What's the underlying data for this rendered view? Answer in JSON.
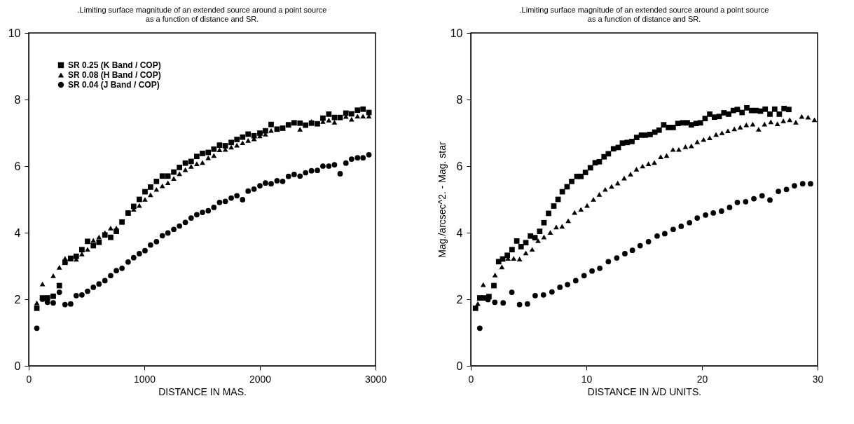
{
  "chart_data": [
    {
      "type": "scatter",
      "title": ".Limiting surface magnitude of an extended source around a point source\nas a function of distance and SR.",
      "xlabel": "DISTANCE IN MAS.",
      "xlim": [
        0,
        3000
      ],
      "xticks": [
        0,
        1000,
        2000,
        3000
      ],
      "ylim": [
        0,
        10
      ],
      "yticks": [
        0,
        2,
        4,
        6,
        8,
        10
      ],
      "grid": false,
      "legend": "top left",
      "series": [
        {
          "name": "SR 0.25 (K Band / COP)",
          "color": "#000000",
          "marker": "square",
          "x": [
            70,
            119,
            162,
            212,
            265,
            314,
            363,
            411,
            460,
            509,
            559,
            608,
            659,
            709,
            758,
            807,
            860,
            908,
            957,
            1006,
            1054,
            1105,
            1156,
            1204,
            1255,
            1304,
            1355,
            1405,
            1454,
            1503,
            1553,
            1602,
            1651,
            1701,
            1752,
            1801,
            1850,
            1898,
            1949,
            2000,
            2048,
            2097,
            2148,
            2197,
            2247,
            2296,
            2347,
            2395,
            2446,
            2497,
            2545,
            2596,
            2645,
            2694,
            2744,
            2793,
            2844,
            2892,
            2943
          ],
          "values": [
            1.73,
            2.04,
            2.04,
            2.09,
            2.41,
            3.11,
            3.23,
            3.29,
            3.49,
            3.74,
            3.61,
            3.71,
            3.93,
            3.86,
            4.04,
            4.32,
            4.59,
            4.79,
            5.0,
            5.23,
            5.37,
            5.54,
            5.7,
            5.7,
            5.82,
            5.96,
            6.09,
            6.14,
            6.29,
            6.38,
            6.41,
            6.51,
            6.63,
            6.61,
            6.71,
            6.8,
            6.87,
            6.96,
            6.91,
            6.99,
            7.06,
            7.25,
            7.11,
            7.14,
            7.24,
            7.3,
            7.29,
            7.23,
            7.29,
            7.27,
            7.44,
            7.56,
            7.46,
            7.46,
            7.59,
            7.57,
            7.68,
            7.71,
            7.61
          ]
        },
        {
          "name": "SR 0.08 (H Band / COP)",
          "color": "#000000",
          "marker": "triangle",
          "x": [
            70,
            119,
            212,
            265,
            314,
            363,
            411,
            460,
            509,
            559,
            608,
            659,
            709,
            758,
            807,
            860,
            908,
            957,
            1006,
            1054,
            1105,
            1156,
            1204,
            1255,
            1304,
            1355,
            1405,
            1454,
            1503,
            1553,
            1602,
            1651,
            1701,
            1752,
            1801,
            1850,
            1898,
            1949,
            2000,
            2048,
            2097,
            2197,
            2347,
            2446,
            2545,
            2596,
            2645,
            2744,
            2793,
            2844,
            2892,
            2943
          ],
          "values": [
            1.89,
            2.46,
            2.71,
            2.96,
            3.23,
            3.21,
            3.2,
            3.36,
            3.5,
            3.77,
            3.87,
            4.0,
            4.14,
            4.14,
            4.34,
            4.59,
            4.7,
            4.82,
            5.0,
            5.14,
            5.3,
            5.41,
            5.5,
            5.63,
            5.77,
            5.89,
            5.99,
            6.07,
            6.11,
            6.25,
            6.32,
            6.49,
            6.5,
            6.57,
            6.63,
            6.7,
            6.77,
            6.82,
            6.91,
            6.96,
            7.07,
            7.14,
            7.11,
            7.34,
            7.34,
            7.38,
            7.32,
            7.49,
            7.41,
            7.5,
            7.5,
            7.5
          ]
        },
        {
          "name": "SR 0.04 (J Band / COP)",
          "color": "#000000",
          "marker": "circle",
          "x": [
            70,
            119,
            162,
            212,
            265,
            314,
            363,
            411,
            460,
            509,
            559,
            608,
            659,
            709,
            758,
            807,
            860,
            908,
            957,
            1006,
            1054,
            1105,
            1156,
            1204,
            1255,
            1304,
            1355,
            1405,
            1454,
            1503,
            1553,
            1602,
            1651,
            1701,
            1752,
            1801,
            1850,
            1898,
            1949,
            2000,
            2048,
            2097,
            2148,
            2197,
            2247,
            2296,
            2347,
            2395,
            2446,
            2497,
            2545,
            2596,
            2645,
            2694,
            2744,
            2793,
            2844,
            2892,
            2943
          ],
          "values": [
            1.13,
            2.0,
            1.91,
            1.89,
            2.21,
            1.84,
            1.86,
            2.11,
            2.13,
            2.24,
            2.36,
            2.46,
            2.56,
            2.71,
            2.86,
            2.93,
            3.12,
            3.25,
            3.37,
            3.46,
            3.63,
            3.73,
            3.91,
            3.99,
            4.1,
            4.2,
            4.31,
            4.44,
            4.54,
            4.61,
            4.66,
            4.76,
            4.91,
            4.94,
            5.04,
            5.11,
            4.99,
            5.25,
            5.31,
            5.41,
            5.49,
            5.47,
            5.56,
            5.54,
            5.69,
            5.75,
            5.7,
            5.8,
            5.86,
            5.87,
            6.0,
            6.0,
            6.04,
            5.77,
            6.09,
            6.21,
            6.25,
            6.25,
            6.34
          ]
        }
      ]
    },
    {
      "type": "scatter",
      "title": ".Limiting surface magnitude of an extended source around a point source\nas a function of distance and SR.",
      "xlabel": "DISTANCE IN λ/D UNITS.",
      "ylabel": "Mag./arcsec^2. - Mag. star",
      "xlim": [
        0,
        30
      ],
      "xticks": [
        0,
        10,
        20,
        30
      ],
      "ylim": [
        0,
        10
      ],
      "yticks": [
        0,
        2,
        4,
        6,
        8,
        10
      ],
      "grid": false,
      "legend": "top left",
      "series": [
        {
          "name": "SR 0.25 (K Band / COP)",
          "color": "#000000",
          "marker": "square",
          "x": [
            0.41,
            0.78,
            1.12,
            1.57,
            2.0,
            2.41,
            2.76,
            3.16,
            3.57,
            3.98,
            4.35,
            4.76,
            5.16,
            5.55,
            5.96,
            6.33,
            6.73,
            7.18,
            7.55,
            7.92,
            8.33,
            8.73,
            9.18,
            9.53,
            9.92,
            10.35,
            10.76,
            11.12,
            11.53,
            11.9,
            12.35,
            12.76,
            13.12,
            13.53,
            13.94,
            14.35,
            14.76,
            15.1,
            15.51,
            15.92,
            16.29,
            16.69,
            17.1,
            17.51,
            17.92,
            18.33,
            18.73,
            19.08,
            19.49,
            19.86,
            20.27,
            20.67,
            21.08,
            21.49,
            21.9,
            22.31,
            22.71,
            23.06,
            23.47,
            23.88,
            24.29,
            24.69,
            25.06,
            25.47,
            25.88,
            26.29,
            26.69,
            27.1,
            27.51
          ],
          "values": [
            1.73,
            2.04,
            2.04,
            2.08,
            2.41,
            3.13,
            3.21,
            3.32,
            3.49,
            3.75,
            3.58,
            3.7,
            3.9,
            3.85,
            4.04,
            4.3,
            4.58,
            4.8,
            5.0,
            5.23,
            5.38,
            5.54,
            5.69,
            5.69,
            5.81,
            5.95,
            6.1,
            6.13,
            6.28,
            6.37,
            6.52,
            6.56,
            6.69,
            6.71,
            6.74,
            6.86,
            6.93,
            6.93,
            6.95,
            7.02,
            7.08,
            7.24,
            7.16,
            7.16,
            7.28,
            7.3,
            7.3,
            7.24,
            7.28,
            7.3,
            7.43,
            7.56,
            7.47,
            7.49,
            7.6,
            7.56,
            7.67,
            7.7,
            7.61,
            7.75,
            7.67,
            7.67,
            7.65,
            7.71,
            7.56,
            7.71,
            7.56,
            7.73,
            7.7
          ]
        },
        {
          "name": "SR 0.08 (H Band / COP)",
          "color": "#000000",
          "marker": "triangle",
          "x": [
            0.61,
            1.08,
            2.1,
            2.69,
            3.22,
            3.71,
            4.22,
            4.76,
            5.31,
            5.82,
            6.33,
            6.88,
            7.39,
            7.9,
            8.43,
            8.98,
            9.53,
            10.06,
            10.61,
            11.12,
            11.63,
            12.18,
            12.71,
            13.27,
            13.82,
            14.33,
            14.86,
            15.37,
            15.88,
            16.43,
            16.94,
            17.49,
            18.0,
            18.57,
            19.08,
            19.59,
            20.14,
            20.67,
            21.22,
            21.73,
            22.24,
            22.8,
            23.31,
            23.84,
            24.39,
            24.9,
            25.41,
            25.96,
            26.53,
            27.04,
            27.59,
            28.12,
            28.63,
            29.18,
            29.73
          ],
          "values": [
            1.87,
            2.44,
            2.73,
            2.97,
            3.23,
            3.23,
            3.21,
            3.39,
            3.5,
            3.76,
            3.87,
            4.01,
            4.17,
            4.19,
            4.36,
            4.61,
            4.7,
            4.82,
            5.0,
            5.15,
            5.3,
            5.39,
            5.49,
            5.64,
            5.76,
            5.91,
            6.0,
            6.07,
            6.11,
            6.28,
            6.32,
            6.5,
            6.5,
            6.58,
            6.61,
            6.73,
            6.8,
            6.85,
            6.95,
            7.0,
            7.06,
            7.12,
            7.17,
            7.24,
            7.26,
            7.11,
            7.26,
            7.33,
            7.27,
            7.36,
            7.39,
            7.32,
            7.49,
            7.47,
            7.39
          ]
        },
        {
          "name": "SR 0.04 (J Band / COP)",
          "color": "#000000",
          "marker": "circle",
          "x": [
            0.78,
            1.49,
            2.08,
            2.8,
            3.55,
            4.22,
            4.9,
            5.57,
            6.29,
            7.02,
            7.71,
            8.37,
            9.08,
            9.8,
            10.49,
            11.16,
            11.9,
            12.63,
            13.33,
            13.98,
            14.65,
            15.37,
            16.12,
            16.78,
            17.51,
            18.2,
            18.92,
            19.59,
            20.31,
            20.98,
            21.69,
            22.39,
            23.06,
            23.78,
            24.49,
            25.2,
            25.88,
            26.61,
            27.31,
            28.0,
            28.71,
            29.39
          ],
          "values": [
            1.13,
            1.99,
            1.91,
            1.89,
            2.21,
            1.84,
            1.86,
            2.11,
            2.13,
            2.22,
            2.36,
            2.44,
            2.56,
            2.71,
            2.85,
            2.93,
            3.13,
            3.24,
            3.37,
            3.47,
            3.61,
            3.73,
            3.9,
            3.97,
            4.1,
            4.19,
            4.3,
            4.44,
            4.53,
            4.59,
            4.65,
            4.76,
            4.91,
            4.93,
            5.02,
            5.11,
            4.98,
            5.24,
            5.3,
            5.41,
            5.47,
            5.47
          ]
        }
      ]
    }
  ]
}
